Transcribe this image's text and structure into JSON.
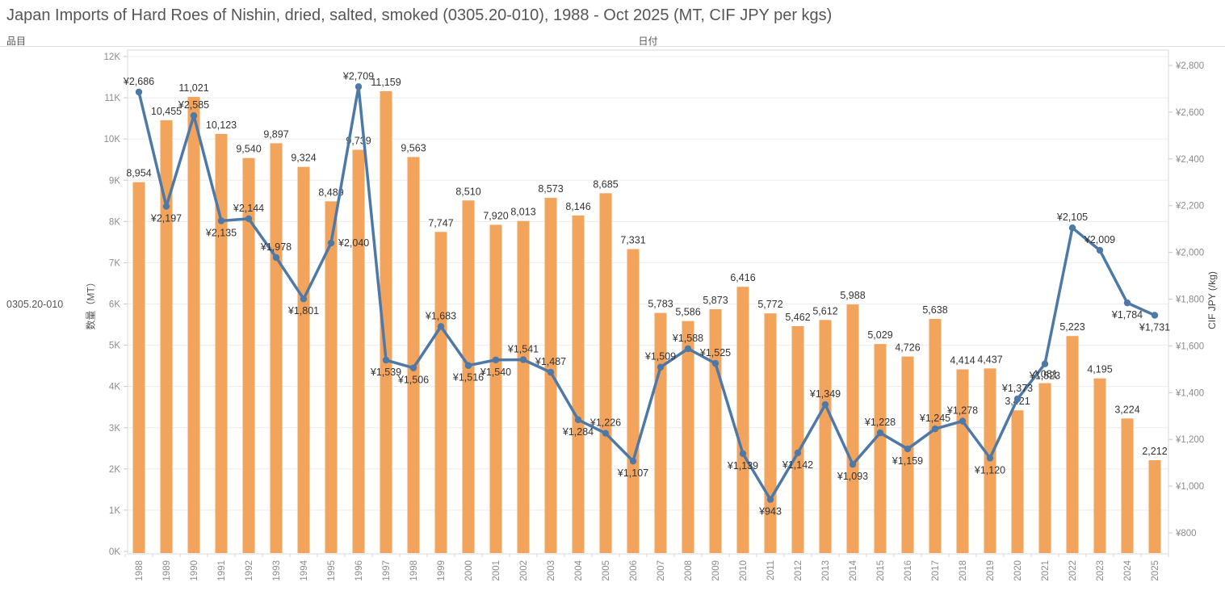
{
  "title": "Japan Imports of Hard Roes of Nishin, dried, salted, smoked (0305.20-010), 1988 - Oct 2025 (MT, CIF JPY per kgs)",
  "header": {
    "item_label": "品目",
    "date_label": "日付"
  },
  "row_label": "0305.20-010",
  "colors": {
    "bar": "#F2A35C",
    "line": "#4E79A7",
    "grid": "#ECECEC",
    "border": "#D9D9D9",
    "axis_text": "#8C8C8C",
    "data_label": "#333333",
    "title_text": "#565656"
  },
  "chart_data": {
    "type": "bar",
    "subtype": "bar+line dual axis combo",
    "title": "Japan Imports of Hard Roes of Nishin, dried, salted, smoked (0305.20-010), 1988 - Oct 2025 (MT, CIF JPY per kgs)",
    "categories": [
      "1988",
      "1989",
      "1990",
      "1991",
      "1992",
      "1993",
      "1994",
      "1995",
      "1996",
      "1997",
      "1998",
      "1999",
      "2000",
      "2001",
      "2002",
      "2003",
      "2004",
      "2005",
      "2006",
      "2007",
      "2008",
      "2009",
      "2010",
      "2011",
      "2012",
      "2013",
      "2014",
      "2015",
      "2016",
      "2017",
      "2018",
      "2019",
      "2020",
      "2021",
      "2022",
      "2023",
      "2024",
      "2025"
    ],
    "series": [
      {
        "name": "数量（MT）",
        "type": "bar",
        "axis": "left",
        "color": "#F2A35C",
        "values": [
          8954,
          10455,
          11021,
          10123,
          9540,
          9897,
          9324,
          8489,
          9739,
          11159,
          9563,
          7747,
          8510,
          7920,
          8013,
          8573,
          8146,
          8685,
          7331,
          5783,
          5586,
          5873,
          6416,
          5772,
          5462,
          5612,
          5988,
          5029,
          4726,
          5638,
          4414,
          4437,
          3421,
          4081,
          5223,
          4195,
          3224,
          2212
        ]
      },
      {
        "name": "CIF JPY (/kg)",
        "type": "line",
        "axis": "right",
        "color": "#4E79A7",
        "label_prefix": "¥",
        "values": [
          2686,
          2197,
          2585,
          2135,
          2144,
          1978,
          1801,
          2040,
          2709,
          1539,
          1506,
          1683,
          1516,
          1540,
          1541,
          1487,
          1284,
          1226,
          1107,
          1509,
          1588,
          1525,
          1139,
          943,
          1142,
          1349,
          1093,
          1228,
          1159,
          1245,
          1278,
          1120,
          1373,
          1523,
          2105,
          2009,
          1784,
          1731
        ],
        "label_side": [
          "above",
          "below",
          "above",
          "below",
          "above",
          "above",
          "below",
          "right",
          "above",
          "below",
          "below",
          "above",
          "below",
          "below",
          "above",
          "above",
          "below",
          "above",
          "below",
          "above",
          "above",
          "above",
          "below",
          "below",
          "below",
          "above",
          "below",
          "above",
          "below",
          "above",
          "above",
          "below",
          "above",
          "below",
          "above",
          "above",
          "below",
          "below"
        ]
      }
    ],
    "left_axis": {
      "label": "数量（MT）",
      "min": 0,
      "max": 12000,
      "tick_step": 1000,
      "tick_labels": [
        "0K",
        "1K",
        "2K",
        "3K",
        "4K",
        "5K",
        "6K",
        "7K",
        "8K",
        "9K",
        "10K",
        "11K",
        "12K"
      ]
    },
    "right_axis": {
      "label": "CIF JPY (/kg)",
      "min": 800,
      "max": 2800,
      "tick_step": 200,
      "tick_labels": [
        "¥800",
        "¥1,000",
        "¥1,200",
        "¥1,400",
        "¥1,600",
        "¥1,800",
        "¥2,000",
        "¥2,200",
        "¥2,400",
        "¥2,600",
        "¥2,800"
      ]
    },
    "grid": true,
    "legend": "none"
  }
}
